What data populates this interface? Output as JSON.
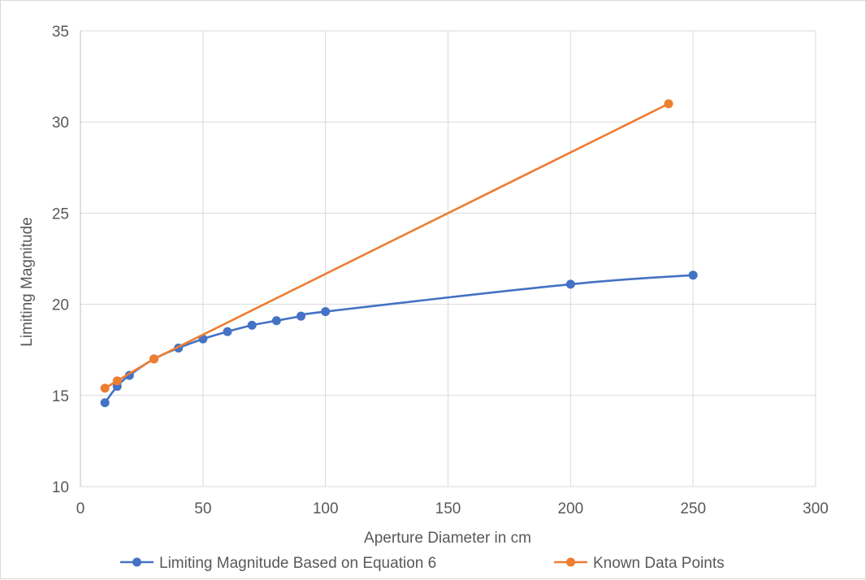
{
  "chart_data": {
    "type": "line",
    "xlabel": "Aperture Diameter in cm",
    "ylabel": "Limiting Magnitude",
    "xlim": [
      0,
      300
    ],
    "ylim": [
      10,
      35
    ],
    "xticks": [
      0,
      50,
      100,
      150,
      200,
      250,
      300
    ],
    "yticks": [
      10,
      15,
      20,
      25,
      30,
      35
    ],
    "grid": true,
    "legend_position": "bottom",
    "series": [
      {
        "name": "Limiting Magnitude Based on Equation 6",
        "color": "#4472c4",
        "x": [
          10,
          15,
          20,
          30,
          40,
          50,
          60,
          70,
          80,
          90,
          100,
          200,
          250
        ],
        "y": [
          14.6,
          15.5,
          16.1,
          17.0,
          17.6,
          18.1,
          18.5,
          18.85,
          19.1,
          19.35,
          19.6,
          21.1,
          21.6
        ]
      },
      {
        "name": "Known Data Points",
        "color": "#ed7d31",
        "x": [
          10,
          15,
          30,
          240
        ],
        "y": [
          15.4,
          15.8,
          17.0,
          31.0
        ]
      }
    ]
  }
}
